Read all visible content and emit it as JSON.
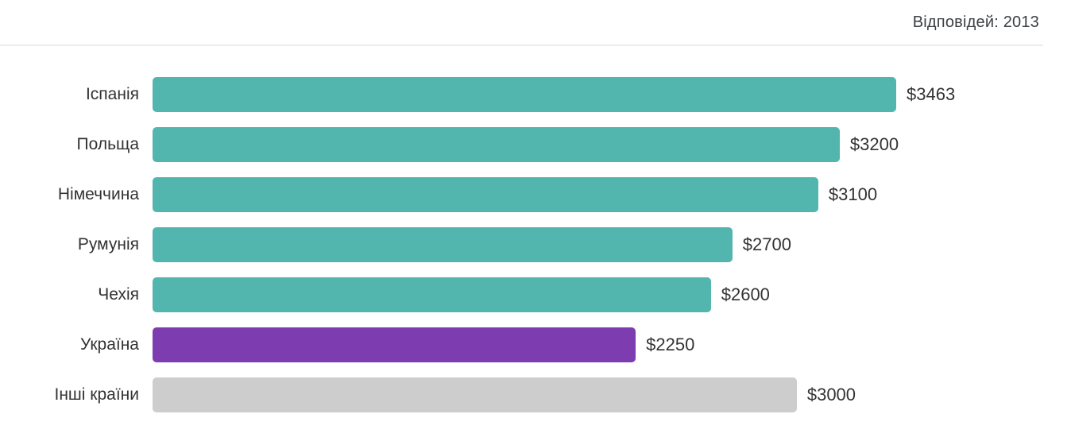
{
  "header": {
    "responses_label": "Відповідей: 2013"
  },
  "colors": {
    "teal": "#52b5ae",
    "purple": "#7d3caf",
    "gray": "#cdcdcd",
    "divider": "#ececec",
    "text": "#333333"
  },
  "chart_data": {
    "type": "bar",
    "orientation": "horizontal",
    "title": "",
    "annotation": "Відповідей: 2013",
    "categories": [
      "Іспанія",
      "Польща",
      "Німеччина",
      "Румунія",
      "Чехія",
      "Україна",
      "Інші країни"
    ],
    "values": [
      3463,
      3200,
      3100,
      2700,
      2600,
      2250,
      3000
    ],
    "value_labels": [
      "$3463",
      "$3200",
      "$3100",
      "$2700",
      "$2600",
      "$2250",
      "$3000"
    ],
    "bar_colors": [
      "teal",
      "teal",
      "teal",
      "teal",
      "teal",
      "purple",
      "gray"
    ],
    "unit": "$",
    "xlim": [
      0,
      3463
    ],
    "grid": false,
    "legend": false
  }
}
